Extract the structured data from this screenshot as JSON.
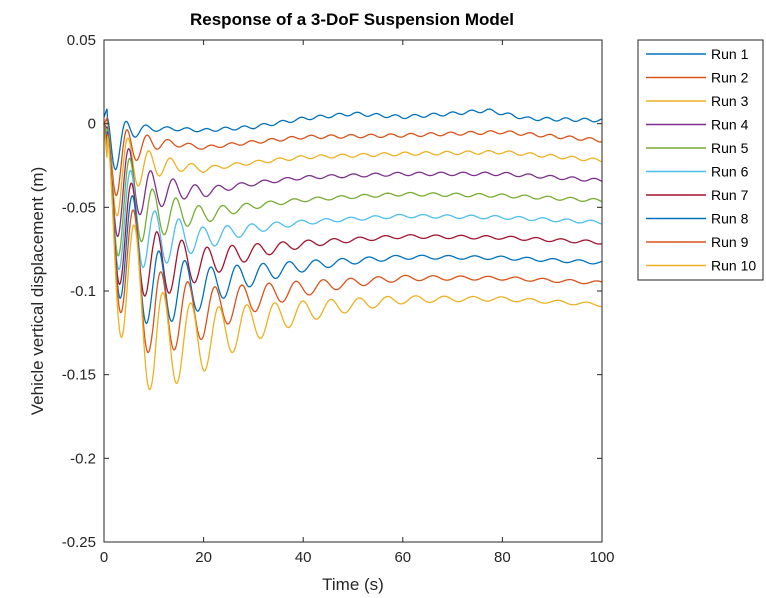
{
  "chart_data": {
    "type": "line",
    "title": "Response of a 3-DoF Suspension Model",
    "xlabel": "Time (s)",
    "ylabel": "Vehicle vertical displacement (m)",
    "xlim": [
      0,
      100
    ],
    "ylim": [
      -0.25,
      0.05
    ],
    "xticks": [
      "0",
      "20",
      "40",
      "60",
      "80",
      "100"
    ],
    "yticks": [
      "0.05",
      "0",
      "-0.05",
      "-0.1",
      "-0.15",
      "-0.2",
      "-0.25"
    ],
    "grid": false,
    "legend_position": "outside-top-right",
    "series": [
      {
        "name": "Run 1",
        "color": "#0072BD",
        "offset": 0.0,
        "peak": -0.055,
        "tau": 3.0,
        "period": 3.8,
        "x": [
          0,
          10,
          20,
          30,
          40,
          50,
          60,
          70,
          77,
          85,
          100
        ],
        "y": [
          0.004,
          -0.002,
          -0.004,
          -0.002,
          0.003,
          0.006,
          0.004,
          0.006,
          0.008,
          0.003,
          0.002
        ]
      },
      {
        "name": "Run 2",
        "color": "#D95319",
        "offset": -0.012,
        "peak": -0.075,
        "tau": 4.5,
        "period": 4.0,
        "x": [
          0,
          10,
          20,
          40,
          60,
          80,
          100
        ],
        "y": [
          0.0,
          -0.008,
          -0.014,
          -0.008,
          -0.007,
          -0.005,
          -0.01
        ]
      },
      {
        "name": "Run 3",
        "color": "#EDB120",
        "offset": -0.024,
        "peak": -0.095,
        "tau": 6.0,
        "period": 4.2,
        "x": [
          0,
          10,
          20,
          40,
          60,
          80,
          100
        ],
        "y": [
          0.0,
          -0.018,
          -0.026,
          -0.02,
          -0.018,
          -0.017,
          -0.022
        ]
      },
      {
        "name": "Run 4",
        "color": "#7E2F8E",
        "offset": -0.036,
        "peak": -0.115,
        "tau": 7.5,
        "period": 4.4,
        "x": [
          0,
          10,
          20,
          40,
          60,
          80,
          100
        ],
        "y": [
          0.0,
          -0.03,
          -0.038,
          -0.032,
          -0.03,
          -0.03,
          -0.034
        ]
      },
      {
        "name": "Run 5",
        "color": "#77AC30",
        "offset": -0.048,
        "peak": -0.135,
        "tau": 9.0,
        "period": 4.6,
        "x": [
          0,
          10,
          20,
          40,
          60,
          80,
          100
        ],
        "y": [
          0.0,
          -0.04,
          -0.05,
          -0.045,
          -0.042,
          -0.043,
          -0.046
        ]
      },
      {
        "name": "Run 6",
        "color": "#4DBEEE",
        "offset": -0.06,
        "peak": -0.15,
        "tau": 10.5,
        "period": 4.8,
        "x": [
          0,
          10,
          20,
          40,
          60,
          80,
          100
        ],
        "y": [
          0.0,
          -0.052,
          -0.062,
          -0.058,
          -0.055,
          -0.056,
          -0.059
        ]
      },
      {
        "name": "Run 7",
        "color": "#A2142F",
        "offset": -0.072,
        "peak": -0.165,
        "tau": 12.5,
        "period": 5.0,
        "x": [
          0,
          10,
          20,
          40,
          60,
          80,
          100
        ],
        "y": [
          0.0,
          -0.064,
          -0.074,
          -0.07,
          -0.067,
          -0.068,
          -0.071
        ]
      },
      {
        "name": "Run 8",
        "color": "#0072BD",
        "offset": -0.084,
        "peak": -0.18,
        "tau": 14.5,
        "period": 5.2,
        "x": [
          0,
          10,
          20,
          40,
          60,
          80,
          100
        ],
        "y": [
          0.0,
          -0.075,
          -0.086,
          -0.082,
          -0.079,
          -0.08,
          -0.083
        ]
      },
      {
        "name": "Run 9",
        "color": "#D95319",
        "offset": -0.096,
        "peak": -0.195,
        "tau": 16.5,
        "period": 5.4,
        "x": [
          0,
          10,
          20,
          40,
          60,
          80,
          100
        ],
        "y": [
          0.0,
          -0.087,
          -0.098,
          -0.094,
          -0.091,
          -0.092,
          -0.095
        ]
      },
      {
        "name": "Run 10",
        "color": "#EDB120",
        "offset": -0.108,
        "peak": -0.217,
        "tau": 18.5,
        "period": 5.6,
        "x": [
          0,
          10,
          20,
          40,
          60,
          80,
          100
        ],
        "y": [
          0.0,
          -0.099,
          -0.11,
          -0.106,
          -0.103,
          -0.104,
          -0.108
        ]
      }
    ]
  }
}
